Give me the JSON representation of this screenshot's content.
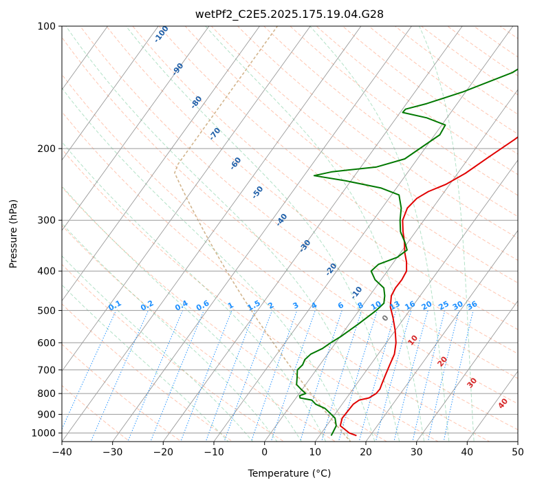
{
  "chart_data": {
    "type": "line",
    "title": "wetPf2_C2E5.2025.175.19.04.G28",
    "xlabel": "Temperature (°C)",
    "ylabel": "Pressure (hPa)",
    "xlim": [
      -40,
      50
    ],
    "ylim": [
      1050,
      100
    ],
    "y_scale": "log",
    "grid": true,
    "x_ticks": [
      -40,
      -30,
      -20,
      -10,
      0,
      10,
      20,
      30,
      40,
      50
    ],
    "x_tick_labels": [
      "−40",
      "−30",
      "−20",
      "−10",
      "0",
      "10",
      "20",
      "30",
      "40",
      "50"
    ],
    "y_ticks": [
      1000,
      900,
      800,
      700,
      600,
      500,
      400,
      300,
      200,
      100
    ],
    "y_tick_labels": [
      "1000",
      "900",
      "800",
      "700",
      "600",
      "500",
      "400",
      "300",
      "200",
      "100"
    ],
    "series": [
      {
        "color": "#e00000",
        "points": [
          [
            1015,
            17.3
          ],
          [
            1000,
            15.5
          ],
          [
            960,
            12.7
          ],
          [
            920,
            12
          ],
          [
            880,
            12.1
          ],
          [
            850,
            12.2
          ],
          [
            830,
            12.8
          ],
          [
            820,
            14.4
          ],
          [
            800,
            15.2
          ],
          [
            780,
            15.3
          ],
          [
            760,
            15
          ],
          [
            720,
            14.4
          ],
          [
            680,
            13.8
          ],
          [
            640,
            13.2
          ],
          [
            600,
            11.9
          ],
          [
            560,
            10
          ],
          [
            520,
            7.7
          ],
          [
            490,
            5.7
          ],
          [
            460,
            4.3
          ],
          [
            440,
            4
          ],
          [
            420,
            4.1
          ],
          [
            400,
            3.8
          ],
          [
            380,
            2.5
          ],
          [
            360,
            0.8
          ],
          [
            340,
            -0.7
          ],
          [
            320,
            -2.5
          ],
          [
            300,
            -4.2
          ],
          [
            280,
            -5
          ],
          [
            265,
            -4.5
          ],
          [
            255,
            -3.2
          ],
          [
            245,
            -0.8
          ],
          [
            230,
            1.5
          ],
          [
            210,
            3.8
          ],
          [
            190,
            6.4
          ],
          [
            175,
            8.3
          ],
          [
            160,
            9.7
          ],
          [
            150,
            10.3
          ],
          [
            140,
            10.2
          ],
          [
            130,
            9.8
          ],
          [
            120,
            9.3
          ],
          [
            110,
            10.5
          ],
          [
            100,
            12.5
          ]
        ]
      },
      {
        "color": "#007800",
        "points": [
          [
            1015,
            12.3
          ],
          [
            1000,
            12.2
          ],
          [
            960,
            11.9
          ],
          [
            920,
            10.6
          ],
          [
            900,
            9.3
          ],
          [
            870,
            7.2
          ],
          [
            850,
            4.8
          ],
          [
            830,
            3.4
          ],
          [
            820,
            0.8
          ],
          [
            810,
            0.4
          ],
          [
            800,
            1.3
          ],
          [
            790,
            0.5
          ],
          [
            780,
            -0.3
          ],
          [
            760,
            -1.8
          ],
          [
            730,
            -2.7
          ],
          [
            700,
            -3.7
          ],
          [
            680,
            -3.4
          ],
          [
            660,
            -3.7
          ],
          [
            640,
            -3.3
          ],
          [
            620,
            -1.8
          ],
          [
            600,
            -1
          ],
          [
            580,
            0.1
          ],
          [
            540,
            1.8
          ],
          [
            500,
            3.4
          ],
          [
            480,
            3.9
          ],
          [
            460,
            3
          ],
          [
            440,
            1.7
          ],
          [
            420,
            -1.2
          ],
          [
            400,
            -3.2
          ],
          [
            385,
            -2.7
          ],
          [
            370,
            0
          ],
          [
            355,
            0.9
          ],
          [
            340,
            -0.6
          ],
          [
            320,
            -3
          ],
          [
            300,
            -4.7
          ],
          [
            280,
            -6.2
          ],
          [
            260,
            -8.5
          ],
          [
            250,
            -13
          ],
          [
            240,
            -21
          ],
          [
            233,
            -28
          ],
          [
            228,
            -25
          ],
          [
            222,
            -17
          ],
          [
            212,
            -12.5
          ],
          [
            200,
            -11
          ],
          [
            185,
            -9
          ],
          [
            175,
            -9.3
          ],
          [
            168,
            -14
          ],
          [
            163,
            -19.5
          ],
          [
            160,
            -19.4
          ],
          [
            155,
            -16
          ],
          [
            145,
            -10.5
          ],
          [
            130,
            -3.5
          ],
          [
            115,
            0.3
          ],
          [
            100,
            1
          ]
        ]
      }
    ],
    "reference_lines": {
      "dry_adiabat_labels": [
        "-100",
        "-90",
        "-80",
        "-70",
        "-60",
        "-50",
        "-40",
        "-30",
        "-20",
        "-10"
      ],
      "mixing_ratio_labels": [
        "0.1",
        "0.2",
        "0.4",
        "0.6",
        "1",
        "1.5",
        "2",
        "3",
        "4",
        "6",
        "8",
        "10",
        "13",
        "16",
        "20",
        "25",
        "30",
        "36"
      ],
      "moist_adiabat_labels": [
        "0",
        "10",
        "20",
        "30",
        "40"
      ]
    }
  }
}
